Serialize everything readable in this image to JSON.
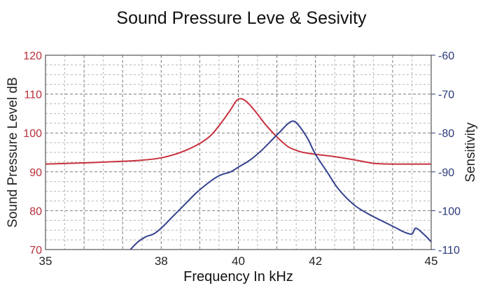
{
  "title": "Sound Pressure Leve & Sesivity",
  "colors": {
    "left_axis": "#b7303c",
    "right_axis": "#2a3a7a",
    "spl_line": "#c8323f",
    "sens_line": "#33418f",
    "grid": "#888888",
    "frame": "#555555"
  },
  "chart_data": {
    "type": "line",
    "title": "Sound Pressure Leve & Sesivity",
    "xlabel": "Frequency In kHz",
    "ylabel_left": "Sound Pressure Level dB",
    "ylabel_right": "Sensitivity",
    "xlim": [
      35,
      45
    ],
    "ylim_left": [
      70,
      120
    ],
    "ylim_right": [
      -110,
      -60
    ],
    "x_ticks": [
      35,
      38,
      40,
      42,
      45
    ],
    "y_ticks_left": [
      70,
      80,
      90,
      100,
      110,
      120
    ],
    "y_ticks_right": [
      -60,
      -70,
      -80,
      -90,
      -100,
      -110
    ],
    "grid": true,
    "series": [
      {
        "axis": "left",
        "color": "#c8323f",
        "x": [
          35,
          36,
          37,
          37.5,
          38,
          38.5,
          39,
          39.3,
          39.6,
          39.8,
          39.95,
          40.05,
          40.15,
          40.3,
          40.5,
          40.7,
          41,
          41.3,
          41.6,
          41.8,
          42,
          42.5,
          43,
          43.5,
          44,
          44.5,
          45
        ],
        "y": [
          92,
          92.3,
          92.7,
          93,
          93.6,
          95,
          97.3,
          99.5,
          103.2,
          106,
          108.3,
          108.8,
          108.5,
          107.2,
          104.8,
          102.2,
          99,
          96.4,
          95.2,
          94.8,
          94.5,
          93.9,
          93.1,
          92.2,
          92,
          92,
          92
        ]
      },
      {
        "axis": "right",
        "color": "#33418f",
        "x": [
          37.2,
          37.4,
          37.6,
          37.8,
          38,
          38.3,
          38.6,
          38.9,
          39.2,
          39.5,
          39.8,
          40,
          40.3,
          40.6,
          40.9,
          41.1,
          41.3,
          41.45,
          41.6,
          41.8,
          42,
          42.3,
          42.6,
          43,
          43.4,
          43.8,
          44.1,
          44.3,
          44.5,
          44.6,
          44.8,
          45
        ],
        "y": [
          -110,
          -108,
          -106.7,
          -106,
          -104.5,
          -101.5,
          -98.5,
          -95.5,
          -93,
          -91,
          -90,
          -88.8,
          -87,
          -84.5,
          -81.5,
          -79.5,
          -77.5,
          -77,
          -78.5,
          -81.5,
          -85.5,
          -90,
          -94.5,
          -98.5,
          -101,
          -103,
          -104.5,
          -105.5,
          -106,
          -104.5,
          -106,
          -108
        ]
      }
    ]
  }
}
